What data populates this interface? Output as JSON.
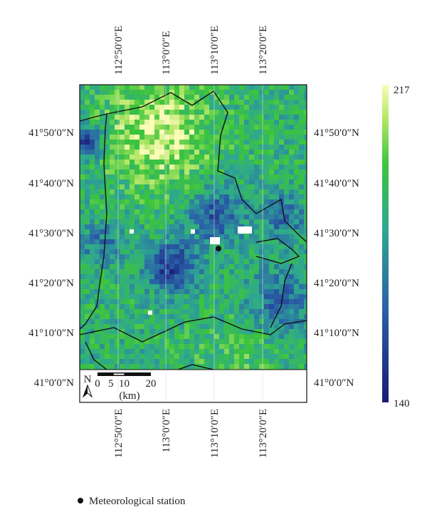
{
  "map": {
    "top_lon_labels": [
      "112°50′0″E",
      "113°0′0″E",
      "113°10′0″E",
      "113°20′0″E"
    ],
    "bottom_lon_labels": [
      "112°50′0″E",
      "113°0′0″E",
      "113°10′0″E",
      "113°20′0″E"
    ],
    "left_lat_labels": [
      "41°50′0″N",
      "41°40′0″N",
      "41°30′0″N",
      "41°20′0″N",
      "41°10′0″N",
      "41°0′0″N"
    ],
    "right_lat_labels": [
      "41°50′0″N",
      "41°40′0″N",
      "41°30′0″N",
      "41°20′0″N",
      "41°10′0″N",
      "41°0′0″N"
    ],
    "colorbar": {
      "max": 217,
      "min": 140
    },
    "north": "N",
    "scale_bar": {
      "ticks": [
        0,
        5,
        10,
        20
      ],
      "unit": "(km)"
    }
  },
  "legend": {
    "label": "Meteorological station"
  }
}
